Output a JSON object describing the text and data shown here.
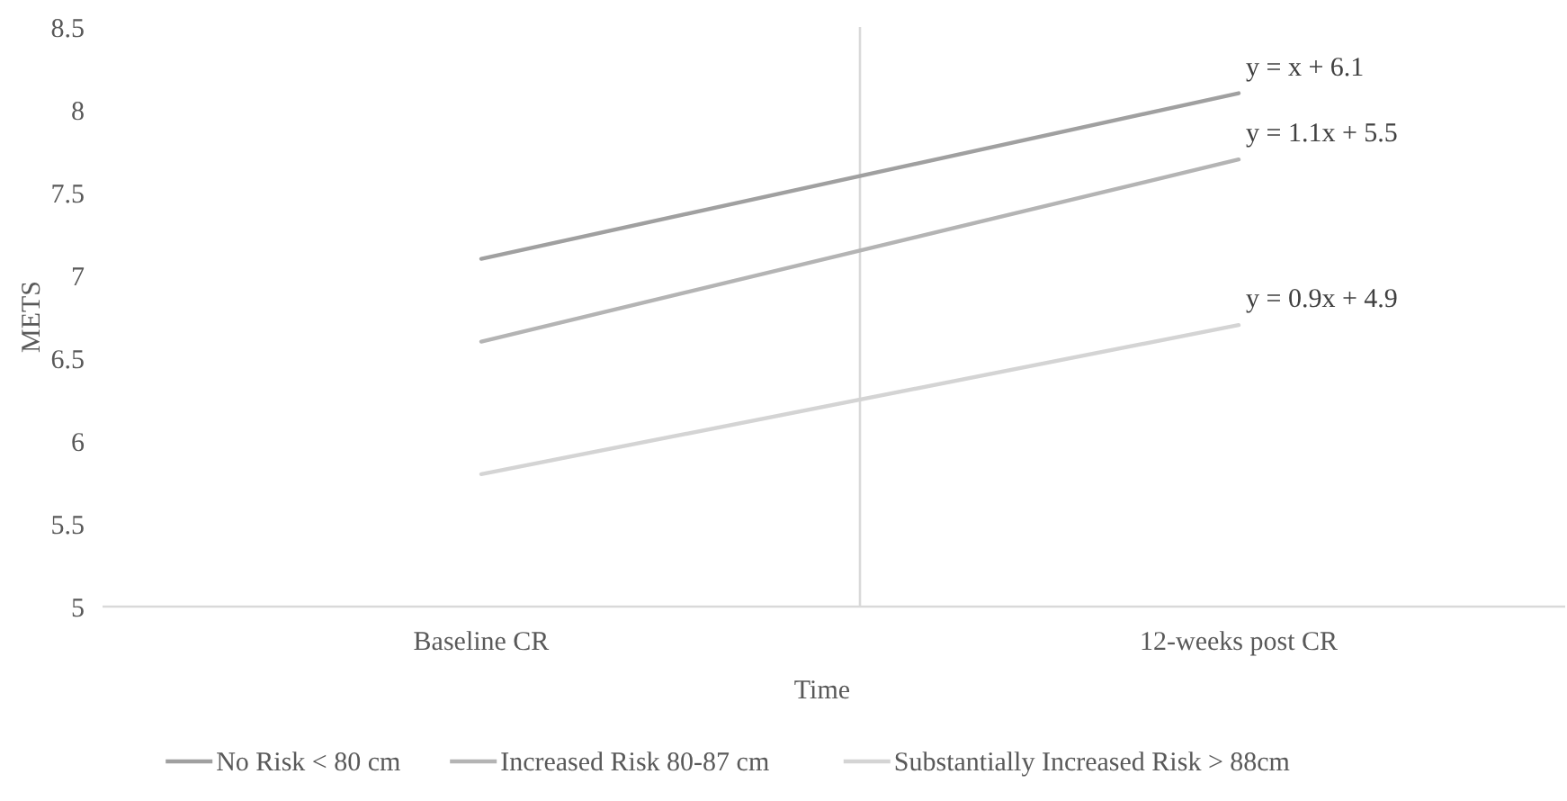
{
  "chart_data": {
    "type": "line",
    "xlabel": "Time",
    "ylabel": "METS",
    "categories": [
      "Baseline CR",
      "12-weeks post CR"
    ],
    "ylim": [
      5,
      8.5
    ],
    "yticks": [
      5,
      5.5,
      6,
      6.5,
      7,
      7.5,
      8,
      8.5
    ],
    "series": [
      {
        "name": "No Risk < 80 cm",
        "color": "#a0a0a0",
        "values": [
          7.1,
          8.1
        ]
      },
      {
        "name": "Increased Risk 80-87 cm",
        "color": "#b4b4b4",
        "values": [
          6.6,
          7.7
        ]
      },
      {
        "name": "Substantially Increased Risk > 88cm",
        "color": "#d4d4d4",
        "values": [
          5.8,
          6.7
        ]
      }
    ],
    "annotations": [
      {
        "text": "y = x + 6.1",
        "x": "12-weeks post CR",
        "y": 8.1
      },
      {
        "text": "y = 1.1x + 5.5",
        "x": "12-weeks post CR",
        "y": 7.7
      },
      {
        "text": "y = 0.9x + 4.9",
        "x": "12-weeks post CR",
        "y": 6.7
      }
    ],
    "grid": false,
    "legend": "bottom",
    "marker": "none",
    "line_style": "solid"
  }
}
